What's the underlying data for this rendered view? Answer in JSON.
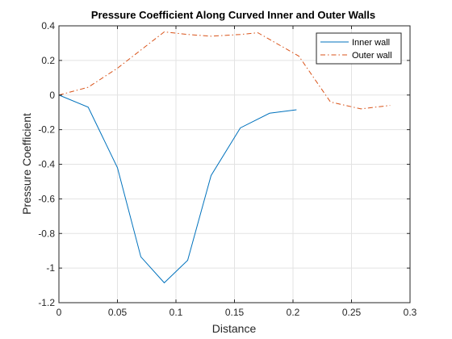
{
  "chart_data": {
    "type": "line",
    "title": "Pressure Coefficient Along Curved Inner and Outer Walls",
    "xlabel": "Distance",
    "ylabel": "Pressure Coefficient",
    "xlim": [
      0,
      0.3
    ],
    "ylim": [
      -1.2,
      0.4
    ],
    "xticks": [
      0,
      0.05,
      0.1,
      0.15,
      0.2,
      0.25,
      0.3
    ],
    "xtick_labels": [
      "0",
      "0.05",
      "0.1",
      "0.15",
      "0.2",
      "0.25",
      "0.3"
    ],
    "yticks": [
      -1.2,
      -1,
      -0.8,
      -0.6,
      -0.4,
      -0.2,
      0,
      0.2,
      0.4
    ],
    "ytick_labels": [
      "-1.2",
      "-1",
      "-0.8",
      "-0.6",
      "-0.4",
      "-0.2",
      "0",
      "0.2",
      "0.4"
    ],
    "grid": true,
    "legend_position": "top-right",
    "series": [
      {
        "name": "Inner wall",
        "color": "#0072BD",
        "style": "solid",
        "x": [
          0,
          0.025,
          0.05,
          0.07,
          0.09,
          0.11,
          0.13,
          0.155,
          0.18,
          0.203
        ],
        "y": [
          0,
          -0.07,
          -0.42,
          -0.935,
          -1.085,
          -0.955,
          -0.465,
          -0.19,
          -0.105,
          -0.085
        ]
      },
      {
        "name": "Outer wall",
        "color": "#D95319",
        "style": "dashdot",
        "x": [
          0,
          0.025,
          0.05,
          0.07,
          0.09,
          0.11,
          0.13,
          0.155,
          0.17,
          0.205,
          0.232,
          0.258,
          0.283
        ],
        "y": [
          0,
          0.045,
          0.155,
          0.26,
          0.365,
          0.35,
          0.34,
          0.35,
          0.36,
          0.225,
          -0.04,
          -0.08,
          -0.06
        ]
      }
    ]
  }
}
